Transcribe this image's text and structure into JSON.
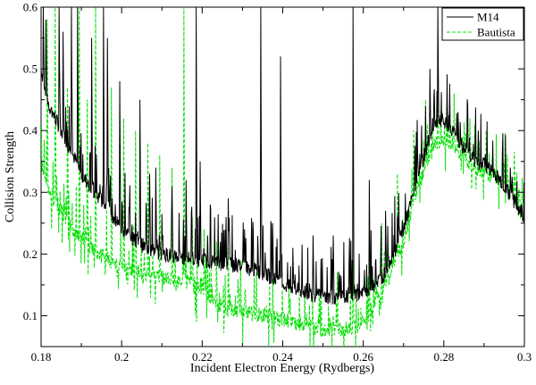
{
  "chart_data": {
    "type": "line",
    "title": "",
    "xlabel": "Incident Electron Energy (Rydbergs)",
    "ylabel": "Collision Strength",
    "xlim": [
      0.18,
      0.3
    ],
    "ylim": [
      0.05,
      0.6
    ],
    "xticks": [
      0.18,
      0.2,
      0.22,
      0.24,
      0.26,
      0.28,
      0.3
    ],
    "xtick_labels": [
      "0.18",
      "0.2",
      "0.22",
      "0.24",
      "0.26",
      "0.28",
      "0.3"
    ],
    "yticks": [
      0.1,
      0.2,
      0.3,
      0.4,
      0.5,
      0.6
    ],
    "ytick_labels": [
      "0.1",
      "0.2",
      "0.3",
      "0.4",
      "0.5",
      "0.6"
    ],
    "grid": false,
    "legend_position": "top-right",
    "series": [
      {
        "name": "M14",
        "color": "#000000",
        "dash": "solid",
        "baseline": [
          [
            0.18,
            0.5
          ],
          [
            0.182,
            0.44
          ],
          [
            0.185,
            0.4
          ],
          [
            0.188,
            0.36
          ],
          [
            0.19,
            0.33
          ],
          [
            0.193,
            0.3
          ],
          [
            0.196,
            0.28
          ],
          [
            0.199,
            0.25
          ],
          [
            0.202,
            0.23
          ],
          [
            0.206,
            0.21
          ],
          [
            0.21,
            0.2
          ],
          [
            0.215,
            0.195
          ],
          [
            0.22,
            0.19
          ],
          [
            0.225,
            0.185
          ],
          [
            0.23,
            0.18
          ],
          [
            0.235,
            0.17
          ],
          [
            0.24,
            0.15
          ],
          [
            0.245,
            0.14
          ],
          [
            0.25,
            0.13
          ],
          [
            0.255,
            0.13
          ],
          [
            0.26,
            0.135
          ],
          [
            0.265,
            0.165
          ],
          [
            0.27,
            0.24
          ],
          [
            0.273,
            0.31
          ],
          [
            0.276,
            0.38
          ],
          [
            0.279,
            0.42
          ],
          [
            0.282,
            0.4
          ],
          [
            0.285,
            0.37
          ],
          [
            0.288,
            0.35
          ],
          [
            0.291,
            0.34
          ],
          [
            0.294,
            0.32
          ],
          [
            0.297,
            0.29
          ],
          [
            0.3,
            0.26
          ]
        ],
        "peaks": [
          [
            0.1805,
            0.6
          ],
          [
            0.1812,
            0.58
          ],
          [
            0.1845,
            0.6
          ],
          [
            0.1855,
            0.56
          ],
          [
            0.1875,
            0.6
          ],
          [
            0.189,
            0.6
          ],
          [
            0.1925,
            0.55
          ],
          [
            0.1955,
            0.6
          ],
          [
            0.1965,
            0.55
          ],
          [
            0.1995,
            0.48
          ],
          [
            0.2045,
            0.45
          ],
          [
            0.207,
            0.33
          ],
          [
            0.2085,
            0.34
          ],
          [
            0.2125,
            0.31
          ],
          [
            0.216,
            0.32
          ],
          [
            0.2185,
            0.6
          ],
          [
            0.2195,
            0.35
          ],
          [
            0.222,
            0.28
          ],
          [
            0.2265,
            0.29
          ],
          [
            0.2305,
            0.24
          ],
          [
            0.2345,
            0.6
          ],
          [
            0.2375,
            0.25
          ],
          [
            0.2395,
            0.52
          ],
          [
            0.2425,
            0.21
          ],
          [
            0.2475,
            0.23
          ],
          [
            0.2525,
            0.23
          ],
          [
            0.2575,
            0.6
          ],
          [
            0.2615,
            0.32
          ],
          [
            0.2655,
            0.27
          ],
          [
            0.2735,
            0.36
          ],
          [
            0.2765,
            0.5
          ],
          [
            0.2785,
            0.6
          ],
          [
            0.2835,
            0.43
          ],
          [
            0.2885,
            0.4
          ],
          [
            0.2965,
            0.34
          ],
          [
            0.2993,
            0.28
          ]
        ]
      },
      {
        "name": "Bautista",
        "color": "#00e000",
        "dash": "dashed",
        "baseline": [
          [
            0.18,
            0.35
          ],
          [
            0.182,
            0.3
          ],
          [
            0.185,
            0.27
          ],
          [
            0.188,
            0.24
          ],
          [
            0.191,
            0.22
          ],
          [
            0.194,
            0.2
          ],
          [
            0.197,
            0.19
          ],
          [
            0.2,
            0.18
          ],
          [
            0.204,
            0.17
          ],
          [
            0.208,
            0.165
          ],
          [
            0.212,
            0.16
          ],
          [
            0.216,
            0.155
          ],
          [
            0.22,
            0.15
          ],
          [
            0.223,
            0.12
          ],
          [
            0.226,
            0.11
          ],
          [
            0.23,
            0.11
          ],
          [
            0.235,
            0.1
          ],
          [
            0.24,
            0.095
          ],
          [
            0.245,
            0.085
          ],
          [
            0.25,
            0.075
          ],
          [
            0.255,
            0.075
          ],
          [
            0.26,
            0.09
          ],
          [
            0.265,
            0.14
          ],
          [
            0.27,
            0.22
          ],
          [
            0.274,
            0.32
          ],
          [
            0.278,
            0.38
          ],
          [
            0.282,
            0.38
          ],
          [
            0.286,
            0.35
          ],
          [
            0.29,
            0.33
          ],
          [
            0.294,
            0.32
          ],
          [
            0.297,
            0.31
          ],
          [
            0.3,
            0.28
          ]
        ],
        "peaks": [
          [
            0.1815,
            0.58
          ],
          [
            0.1835,
            0.6
          ],
          [
            0.1865,
            0.47
          ],
          [
            0.1895,
            0.6
          ],
          [
            0.1915,
            0.45
          ],
          [
            0.1935,
            0.6
          ],
          [
            0.1975,
            0.47
          ],
          [
            0.2005,
            0.42
          ],
          [
            0.2035,
            0.4
          ],
          [
            0.2065,
            0.38
          ],
          [
            0.2095,
            0.36
          ],
          [
            0.2125,
            0.34
          ],
          [
            0.2155,
            0.6
          ],
          [
            0.2175,
            0.26
          ],
          [
            0.2205,
            0.24
          ],
          [
            0.2235,
            0.22
          ],
          [
            0.2265,
            0.21
          ],
          [
            0.2295,
            0.19
          ],
          [
            0.2335,
            0.17
          ],
          [
            0.2375,
            0.16
          ],
          [
            0.2415,
            0.15
          ],
          [
            0.2455,
            0.14
          ],
          [
            0.2495,
            0.16
          ],
          [
            0.2535,
            0.17
          ],
          [
            0.2575,
            0.19
          ],
          [
            0.2615,
            0.2
          ],
          [
            0.2645,
            0.25
          ],
          [
            0.2685,
            0.33
          ],
          [
            0.2725,
            0.4
          ],
          [
            0.2755,
            0.45
          ],
          [
            0.2785,
            0.48
          ],
          [
            0.2825,
            0.46
          ],
          [
            0.2865,
            0.42
          ],
          [
            0.2905,
            0.4
          ],
          [
            0.2945,
            0.38
          ],
          [
            0.2975,
            0.35
          ]
        ]
      }
    ]
  }
}
